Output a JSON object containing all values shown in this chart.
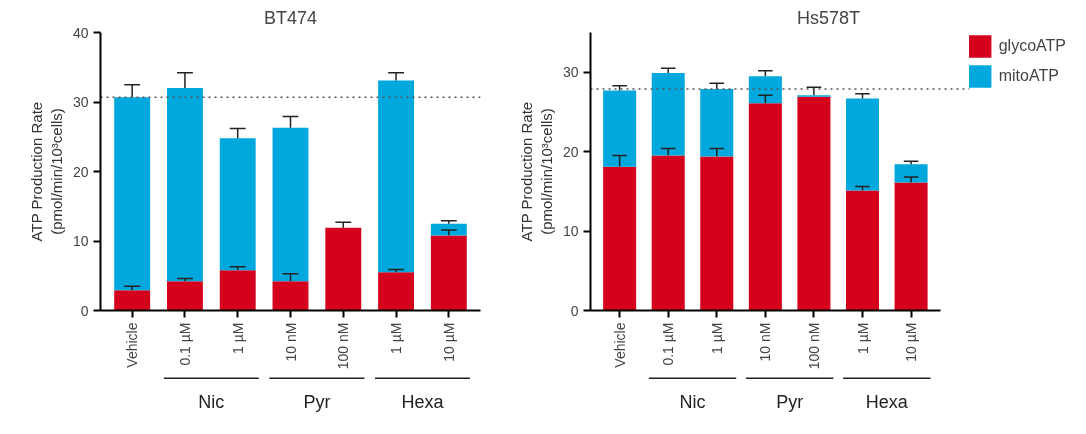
{
  "chart_data": [
    {
      "type": "bar",
      "title": "BT474",
      "ylabel": "ATP Production Rate\n(pmol/min/10³cells)",
      "categories": [
        "Vehicle",
        "0.1 µM",
        "1 µM",
        "10 nM",
        "100 nM",
        "1 µM",
        "10 µM"
      ],
      "stacked": true,
      "series": [
        {
          "color": "#d5001c",
          "values": [
            2.9,
            4.2,
            5.8,
            4.2,
            11.9,
            5.5,
            10.8
          ],
          "errors": [
            0.6,
            0.4,
            0.5,
            1.1,
            0.8,
            0.4,
            0.8
          ]
        },
        {
          "color": "#00a8de",
          "values": [
            27.8,
            27.8,
            19.0,
            22.1,
            null,
            27.6,
            1.7
          ],
          "errors": [
            1.8,
            2.2,
            1.4,
            1.6,
            null,
            1.1,
            0.4
          ]
        }
      ],
      "ylim": [
        0,
        40
      ],
      "yticks": [
        0,
        10,
        20,
        30,
        40
      ],
      "grid": false,
      "ref_lines": [
        {
          "axis": "y",
          "value": 30.7,
          "line_style": "dotted"
        }
      ],
      "annotations": [
        "Nic",
        "Pyr",
        "Hexa"
      ]
    },
    {
      "type": "bar",
      "title": "Hs578T",
      "ylabel": "ATP Production Rate\n(pmol/min/10³cells)",
      "categories": [
        "Vehicle",
        "0.1 µM",
        "1 µM",
        "10 nM",
        "100 nM",
        "1 µM",
        "10 µM"
      ],
      "stacked": true,
      "series": [
        {
          "name": "glycoATP",
          "color": "#d5001c",
          "values": [
            18.1,
            19.5,
            19.4,
            26.1,
            26.9,
            15.1,
            16.1
          ],
          "errors": [
            1.4,
            0.9,
            1.0,
            1.0,
            null,
            0.5,
            0.7
          ]
        },
        {
          "name": "mitoATP",
          "color": "#00a8de",
          "values": [
            9.6,
            10.4,
            8.5,
            3.4,
            0.2,
            11.6,
            2.3
          ],
          "errors": [
            0.6,
            0.6,
            0.7,
            0.7,
            1.0,
            0.6,
            0.4
          ]
        }
      ],
      "ylim": [
        0,
        35
      ],
      "yticks": [
        0,
        10,
        20,
        30
      ],
      "grid": false,
      "legend": "top right",
      "ref_lines": [
        {
          "axis": "y",
          "value": 27.9,
          "line_style": "dotted"
        }
      ],
      "annotations": [
        "Nic",
        "Pyr",
        "Hexa"
      ]
    }
  ]
}
